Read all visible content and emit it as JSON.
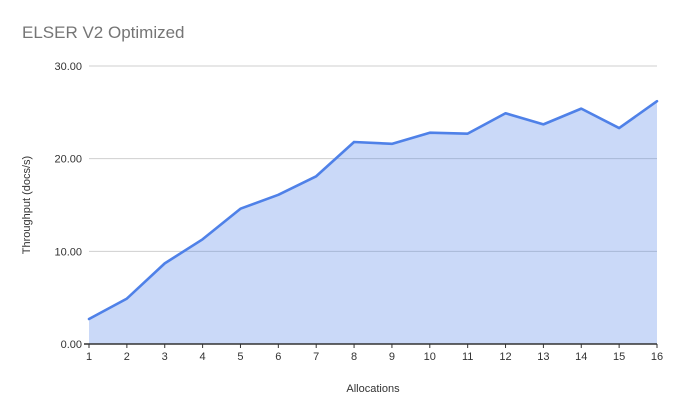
{
  "page": {
    "background": "#ffffff"
  },
  "chart_data": {
    "type": "area",
    "title": "ELSER V2 Optimized",
    "xlabel": "Allocations",
    "ylabel": "Throughput (docs/s)",
    "categories": [
      "1",
      "2",
      "3",
      "4",
      "5",
      "6",
      "7",
      "8",
      "9",
      "10",
      "11",
      "12",
      "13",
      "14",
      "15",
      "16"
    ],
    "values": [
      2.7,
      4.9,
      8.7,
      11.3,
      14.6,
      16.1,
      18.1,
      21.8,
      21.6,
      22.8,
      22.7,
      24.9,
      23.7,
      25.4,
      23.3,
      26.2
    ],
    "ylim": [
      0,
      30
    ],
    "yticks": [
      {
        "value": 0,
        "label": "0.00"
      },
      {
        "value": 10,
        "label": "10.00"
      },
      {
        "value": 20,
        "label": "20.00"
      },
      {
        "value": 30,
        "label": "30.00"
      }
    ],
    "grid": true,
    "legend_position": "none",
    "colors": {
      "line": "#4f81e8",
      "fill": "rgba(79,129,232,0.30)",
      "gridline": "#cfcfcf",
      "axis": "#333333",
      "title_text": "#757575",
      "tick_text": "#333333"
    }
  }
}
